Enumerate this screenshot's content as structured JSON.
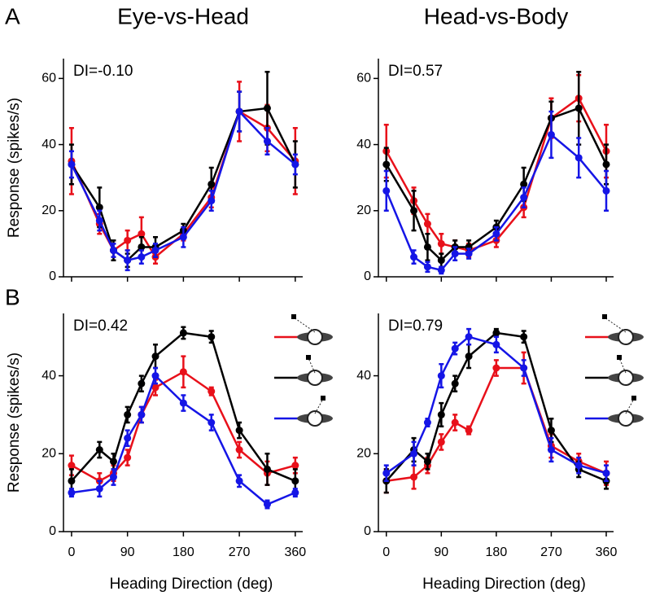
{
  "chart_data": [
    {
      "type": "line",
      "title": "Eye-vs-Head",
      "panel_label": "A",
      "annotation": "DI=-0.10",
      "ylabel": "Response (spikes/s)",
      "x": [
        0,
        45,
        67.5,
        90,
        112.5,
        135,
        180,
        225,
        270,
        315,
        360
      ],
      "xlim": [
        -13,
        372
      ],
      "xticks": [
        0,
        90,
        180,
        270,
        360
      ],
      "ylim": [
        0,
        66
      ],
      "yticks": [
        0,
        20,
        40,
        60
      ],
      "series": [
        {
          "color": "#e8101a",
          "values": [
            35,
            16,
            8,
            11,
            13,
            6,
            13,
            24,
            50,
            45,
            35
          ],
          "errors": [
            10,
            3,
            2,
            3,
            5,
            2,
            2,
            3,
            9,
            7,
            10
          ]
        },
        {
          "color": "#000000",
          "values": [
            34,
            21,
            8,
            5,
            9,
            9,
            14,
            28,
            50,
            51,
            34
          ],
          "errors": [
            6,
            6,
            3,
            2,
            3,
            3,
            2,
            5,
            6,
            11,
            7
          ]
        },
        {
          "color": "#1515e6",
          "values": [
            34,
            17,
            8,
            5,
            6,
            8,
            12,
            23,
            50,
            41,
            34
          ],
          "errors": [
            4,
            3,
            2,
            3,
            2,
            2,
            3,
            3,
            6,
            4,
            3
          ]
        }
      ]
    },
    {
      "type": "line",
      "title": "Head-vs-Body",
      "annotation": "DI=0.57",
      "x": [
        0,
        45,
        67.5,
        90,
        112.5,
        135,
        180,
        225,
        270,
        315,
        360
      ],
      "xlim": [
        -13,
        372
      ],
      "xticks": [
        0,
        90,
        180,
        270,
        360
      ],
      "ylim": [
        0,
        66
      ],
      "yticks": [
        0,
        20,
        40,
        60
      ],
      "series": [
        {
          "color": "#e8101a",
          "values": [
            38,
            23,
            16,
            10,
            9,
            8,
            11,
            21,
            48,
            54,
            38
          ],
          "errors": [
            8,
            4,
            3,
            3,
            2,
            2,
            2,
            3,
            6,
            7,
            8
          ]
        },
        {
          "color": "#000000",
          "values": [
            34,
            20,
            9,
            5,
            9,
            9,
            15,
            28,
            48,
            51,
            34
          ],
          "errors": [
            5,
            6,
            4,
            2,
            2,
            2,
            2,
            5,
            5,
            11,
            6
          ]
        },
        {
          "color": "#1515e6",
          "values": [
            26,
            6,
            3,
            2,
            7,
            7,
            13,
            24,
            43,
            36,
            26
          ],
          "errors": [
            6,
            2,
            1.5,
            1,
            2,
            1.5,
            2,
            3,
            7,
            6,
            6
          ]
        }
      ]
    },
    {
      "type": "line",
      "panel_label": "B",
      "annotation": "DI=0.42",
      "ylabel": "Response (spikes/s)",
      "xlabel": "Heading Direction (deg)",
      "x": [
        0,
        45,
        67.5,
        90,
        112.5,
        135,
        180,
        225,
        270,
        315,
        360
      ],
      "xlim": [
        -13,
        372
      ],
      "xticks": [
        0,
        90,
        180,
        270,
        360
      ],
      "ylim": [
        0,
        56
      ],
      "yticks": [
        0,
        20,
        40
      ],
      "series": [
        {
          "color": "#e8101a",
          "values": [
            17,
            13,
            15,
            19,
            30,
            37,
            41,
            36,
            21,
            15,
            17
          ],
          "errors": [
            2.5,
            2,
            2,
            2,
            2,
            2,
            4,
            1,
            2,
            3,
            2
          ]
        },
        {
          "color": "#000000",
          "values": [
            13,
            21,
            18,
            30,
            38,
            45,
            51,
            50,
            26,
            16,
            13
          ],
          "errors": [
            3,
            2,
            2,
            2,
            2,
            3,
            1.5,
            1.5,
            2,
            4,
            3
          ]
        },
        {
          "color": "#1515e6",
          "values": [
            10,
            11,
            14,
            24,
            30,
            40,
            33,
            28,
            13,
            7,
            10
          ],
          "errors": [
            1,
            2,
            2,
            2,
            2,
            2,
            2,
            2,
            1.5,
            1,
            1
          ]
        }
      ]
    },
    {
      "type": "line",
      "annotation": "DI=0.79",
      "xlabel": "Heading Direction (deg)",
      "x": [
        0,
        45,
        67.5,
        90,
        112.5,
        135,
        180,
        225,
        270,
        315,
        360
      ],
      "xlim": [
        -13,
        372
      ],
      "xticks": [
        0,
        90,
        180,
        270,
        360
      ],
      "ylim": [
        0,
        56
      ],
      "yticks": [
        0,
        20,
        40
      ],
      "series": [
        {
          "color": "#e8101a",
          "values": [
            13,
            14,
            17,
            23,
            28,
            26,
            42,
            42,
            22,
            18,
            15
          ],
          "errors": [
            3,
            3,
            2,
            2,
            2,
            1,
            2,
            4,
            3,
            2,
            3
          ]
        },
        {
          "color": "#000000",
          "values": [
            13,
            21,
            18,
            30,
            38,
            45,
            51,
            50,
            26,
            16,
            13
          ],
          "errors": [
            3,
            3,
            2,
            3,
            2,
            3,
            1,
            1.5,
            3,
            2,
            2
          ]
        },
        {
          "color": "#1515e6",
          "values": [
            15,
            20,
            28,
            40,
            47,
            50,
            48,
            42,
            21,
            17,
            15
          ],
          "errors": [
            2,
            3,
            1,
            3,
            1.5,
            2,
            2,
            2,
            3,
            2,
            2
          ]
        }
      ]
    }
  ]
}
